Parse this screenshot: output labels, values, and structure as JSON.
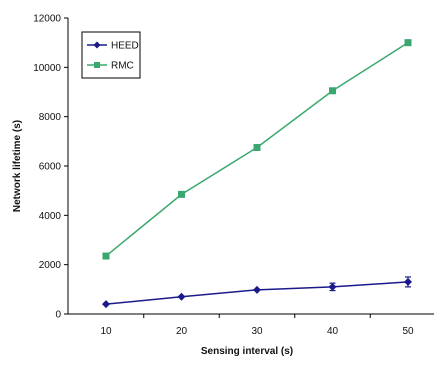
{
  "chart_data": {
    "type": "line",
    "xlabel": "Sensing interval (s)",
    "ylabel": "Network lifetime (s)",
    "x": [
      10,
      20,
      30,
      40,
      50
    ],
    "ylim": [
      0,
      12000
    ],
    "yticks": [
      0,
      2000,
      4000,
      6000,
      8000,
      10000,
      12000
    ],
    "legend_position": "top-left",
    "grid": false,
    "series": [
      {
        "name": "HEED",
        "values": [
          400,
          700,
          980,
          1100,
          1300
        ],
        "errors": [
          0,
          0,
          0,
          150,
          200
        ],
        "color": "#1a1a8c",
        "marker": "diamond"
      },
      {
        "name": "RMC",
        "values": [
          2350,
          4850,
          6750,
          9050,
          11000
        ],
        "color": "#3aa86e",
        "marker": "square"
      }
    ]
  }
}
